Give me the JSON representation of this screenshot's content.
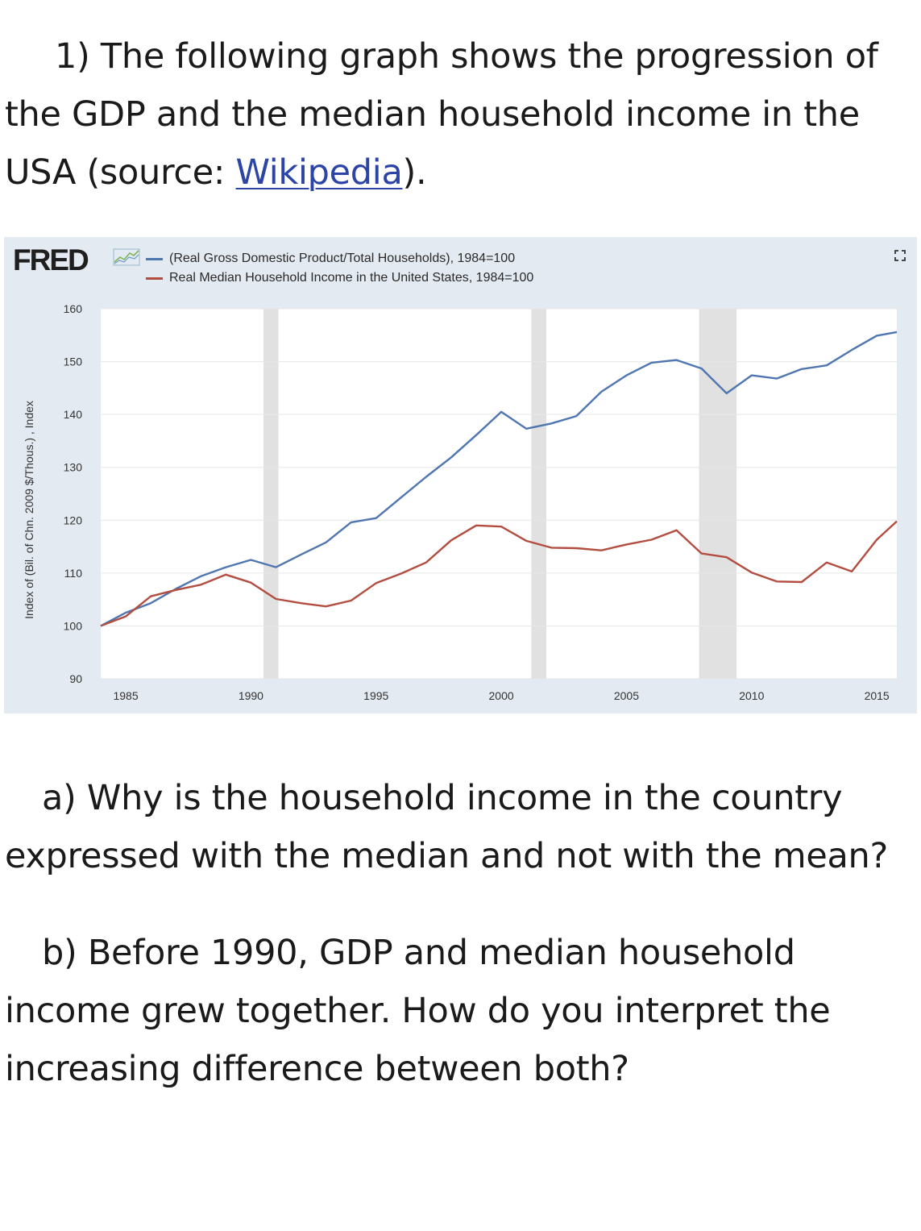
{
  "question": {
    "intro_text": "1) The following graph shows the progression of the GDP and the median household income in the USA (source: ",
    "link_text": "Wikipedia",
    "intro_end": ").",
    "part_a": "a) Why is the household income in the country expressed with the median and not with the mean?",
    "part_b": "b) Before 1990, GDP and median household income grew together. How do you interpret the increasing difference between both?"
  },
  "chart_header": {
    "logo": "FRED",
    "logo_icon": "fred-graph-icon",
    "fullscreen_icon": "fullscreen-icon"
  },
  "colors": {
    "gdp": "#4f76b0",
    "income": "#b24d40",
    "recession": "#e1e1e1",
    "link": "#2b44a6",
    "panel": "#e3eaf2"
  },
  "chart_data": {
    "type": "line",
    "title": "",
    "ylabel": "Index of (Bil. of Chn. 2009 $/Thous.) , Index",
    "xlabel": "",
    "ylim": [
      90,
      160
    ],
    "yticks": [
      90,
      100,
      110,
      120,
      130,
      140,
      150,
      160
    ],
    "xlim": [
      1984,
      2015.8
    ],
    "xticks": [
      1985,
      1990,
      1995,
      2000,
      2005,
      2010,
      2015
    ],
    "grid": true,
    "legend_position": "top-left",
    "recessions": [
      [
        1990.5,
        1991.1
      ],
      [
        2001.2,
        2001.8
      ],
      [
        2007.9,
        2009.4
      ]
    ],
    "series": [
      {
        "name": "(Real Gross Domestic Product/Total Households), 1984=100",
        "color": "#4f76b0",
        "x": [
          1984,
          1985,
          1986,
          1987,
          1988,
          1989,
          1990,
          1991,
          1992,
          1993,
          1994,
          1995,
          1996,
          1997,
          1998,
          1999,
          2000,
          2001,
          2002,
          2003,
          2004,
          2005,
          2006,
          2007,
          2008,
          2009,
          2010,
          2011,
          2012,
          2013,
          2014,
          2015,
          2015.8
        ],
        "values": [
          100,
          102.5,
          104.3,
          107.0,
          109.4,
          111.1,
          112.5,
          111.1,
          113.5,
          115.8,
          119.6,
          120.4,
          124.3,
          128.2,
          131.9,
          136.1,
          140.5,
          137.3,
          138.3,
          139.7,
          144.3,
          147.4,
          149.8,
          150.3,
          148.7,
          144.0,
          147.4,
          146.8,
          148.6,
          149.3,
          152.2,
          154.9,
          155.6
        ]
      },
      {
        "name": "Real Median Household Income in the United States, 1984=100",
        "color": "#b24d40",
        "x": [
          1984,
          1985,
          1986,
          1987,
          1988,
          1989,
          1990,
          1991,
          1992,
          1993,
          1994,
          1995,
          1996,
          1997,
          1998,
          1999,
          2000,
          2001,
          2002,
          2003,
          2004,
          2005,
          2006,
          2007,
          2008,
          2009,
          2010,
          2011,
          2012,
          2013,
          2014,
          2015,
          2015.8
        ],
        "values": [
          100,
          101.8,
          105.6,
          106.8,
          107.8,
          109.7,
          108.2,
          105.1,
          104.3,
          103.7,
          104.8,
          108.1,
          109.9,
          112.0,
          116.2,
          119.0,
          118.8,
          116.1,
          114.8,
          114.7,
          114.3,
          115.4,
          116.3,
          118.1,
          113.7,
          113.0,
          110.1,
          108.4,
          108.3,
          112.0,
          110.3,
          116.3,
          119.8
        ]
      }
    ]
  }
}
